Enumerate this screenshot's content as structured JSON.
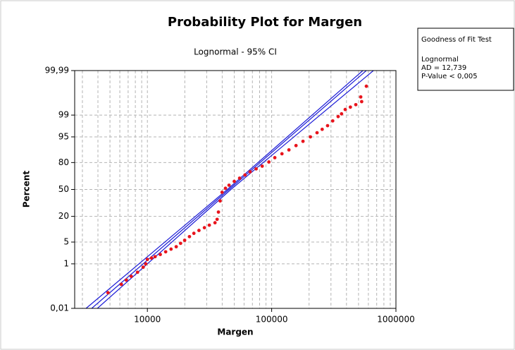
{
  "chart_data": {
    "type": "probability",
    "title": "Probability Plot for Margen",
    "subtitle": "Lognormal - 95% CI",
    "x_label": "Margen",
    "y_label": "Percent",
    "x_log": true,
    "y_scale": "normal-probability",
    "grid": true,
    "xlim": [
      2600,
      1000000
    ],
    "xticks": [
      10000,
      100000,
      1000000
    ],
    "ylim": [
      0.01,
      99.99
    ],
    "yticks": [
      {
        "value": 0.01,
        "label": "0,01"
      },
      1,
      5,
      20,
      50,
      80,
      95,
      99,
      {
        "value": 99.99,
        "label": "99,99"
      }
    ],
    "series": [
      {
        "color": "#e8141c",
        "x": [
          4820,
          6170,
          6760,
          7410,
          8330,
          9250,
          9700,
          10000,
          10800,
          11540,
          12700,
          14030,
          15500,
          17060,
          18500,
          19950,
          21800,
          23660,
          26000,
          28770,
          31500,
          35000,
          36400,
          37300,
          38500,
          39900,
          42500,
          45400,
          50000,
          55200,
          61000,
          67100,
          75000,
          83900,
          95000,
          106000,
          121000,
          137700,
          157000,
          178700,
          205000,
          231800,
          255000,
          281800,
          310000,
          342700,
          365000,
          390800,
          430000,
          475300,
          521000,
          530000,
          578000
        ],
        "values": [
          0.062,
          0.151,
          0.23,
          0.33,
          0.48,
          0.75,
          1.0,
          1.43,
          1.6,
          1.78,
          2.1,
          2.56,
          3.1,
          3.67,
          4.6,
          5.6,
          7.0,
          8.5,
          10.0,
          11.6,
          13.2,
          14.9,
          17.5,
          24.0,
          36.0,
          46.5,
          51.5,
          55.3,
          60.0,
          63.8,
          67.5,
          71.0,
          74.0,
          76.7,
          80.5,
          84.0,
          86.8,
          89.2,
          91.5,
          93.4,
          95.0,
          96.2,
          97.0,
          97.7,
          98.4,
          98.87,
          99.1,
          99.38,
          99.5,
          99.6,
          99.81,
          99.7,
          99.938
        ]
      }
    ],
    "lines": [
      {
        "color": "#1a1ad6",
        "x": [
          3565,
          45400,
          578000
        ],
        "values": [
          0.01,
          50,
          99.99
        ]
      },
      {
        "color": "#1a1ad6",
        "x": [
          3210,
          44000,
          542000
        ],
        "values": [
          0.01,
          50,
          99.99
        ]
      },
      {
        "color": "#1a1ad6",
        "x": [
          3960,
          47000,
          659000
        ],
        "values": [
          0.01,
          50,
          99.99
        ]
      }
    ],
    "legend_box": {
      "title": "Goodness of Fit Test",
      "distribution": "Lognormal",
      "ad": "AD = 12,739",
      "p_value": "P-Value < 0,005"
    }
  }
}
